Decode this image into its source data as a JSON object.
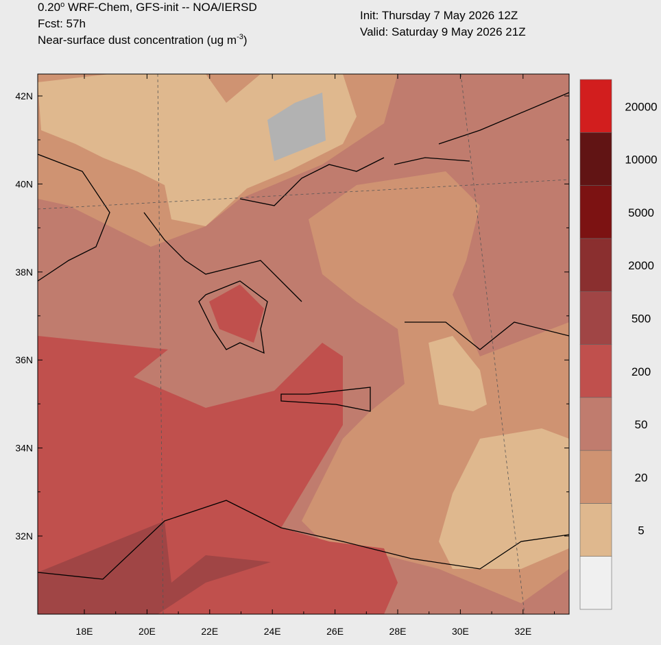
{
  "header": {
    "model": "0.20",
    "model_sup": "o",
    "model_rest": " WRF-Chem, GFS-init -- NOA/IERSD",
    "fcst": "Fcst: 57h",
    "units": "Near-surface dust concentration (ug m",
    "units_sup": "-3",
    "units_end": ")",
    "init": "Init: Thursday 7 May 2026  12Z",
    "valid": "Valid: Saturday 9 May 2026  21Z"
  },
  "axes": {
    "lat_labels": [
      "42N",
      "40N",
      "38N",
      "36N",
      "34N",
      "32N"
    ],
    "lon_labels": [
      "18E",
      "20E",
      "22E",
      "24E",
      "26E",
      "28E",
      "30E",
      "32E"
    ]
  },
  "colorbar": {
    "colors": [
      "#f0f0f0",
      "#dfb88e",
      "#cf9372",
      "#c07c6e",
      "#c0504d",
      "#a04545",
      "#8a2f2f",
      "#7c1212",
      "#611414",
      "#d21e1e"
    ],
    "labels": [
      5,
      20,
      50,
      200,
      500,
      2000,
      5000,
      10000,
      20000
    ]
  }
}
